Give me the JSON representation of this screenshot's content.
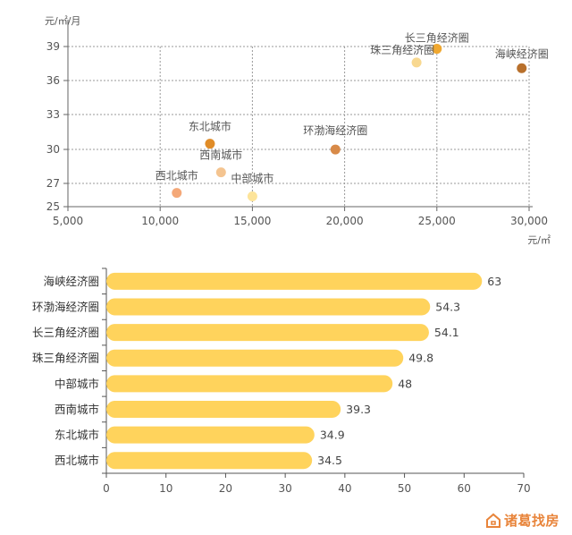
{
  "chart_data": [
    {
      "type": "scatter",
      "ylabel": "元/㎡/月",
      "xlabel": "元/㎡",
      "xlim": [
        5000,
        30000
      ],
      "ylim": [
        25,
        39
      ],
      "x_ticks": [
        "5,000",
        "10,000",
        "15,000",
        "20,000",
        "25,000",
        "30,000"
      ],
      "y_ticks": [
        "25",
        "27",
        "30",
        "33",
        "36",
        "39"
      ],
      "grid": true,
      "points": [
        {
          "label": "长三角经济圈",
          "x": 25000,
          "y": 38.8,
          "color": "#f0a830"
        },
        {
          "label": "珠三角经济圈",
          "x": 23900,
          "y": 37.6,
          "color": "#f8d890"
        },
        {
          "label": "海峡经济圈",
          "x": 29600,
          "y": 37.1,
          "color": "#b8702c"
        },
        {
          "label": "东北城市",
          "x": 12700,
          "y": 30.5,
          "color": "#e08c28"
        },
        {
          "label": "环渤海经济圈",
          "x": 19500,
          "y": 30.0,
          "color": "#d88a48"
        },
        {
          "label": "西南城市",
          "x": 13300,
          "y": 28.0,
          "color": "#f4c490"
        },
        {
          "label": "西北城市",
          "x": 10900,
          "y": 26.2,
          "color": "#f4a878"
        },
        {
          "label": "中部城市",
          "x": 15000,
          "y": 25.9,
          "color": "#fde49a"
        }
      ]
    },
    {
      "type": "bar",
      "orientation": "horizontal",
      "categories": [
        "海峡经济圈",
        "环渤海经济圈",
        "长三角经济圈",
        "珠三角经济圈",
        "中部城市",
        "西南城市",
        "东北城市",
        "西北城市"
      ],
      "values": [
        63,
        54.3,
        54.1,
        49.8,
        48,
        39.3,
        34.9,
        34.5
      ],
      "value_labels": [
        "63",
        "54.3",
        "54.1",
        "49.8",
        "48",
        "39.3",
        "34.9",
        "34.5"
      ],
      "xlim": [
        0,
        70
      ],
      "x_ticks": [
        "0",
        "10",
        "20",
        "30",
        "40",
        "50",
        "60",
        "70"
      ],
      "bar_color": "#ffd35c"
    }
  ],
  "logo": {
    "text": "诸葛找房",
    "color": "#e8843a"
  }
}
